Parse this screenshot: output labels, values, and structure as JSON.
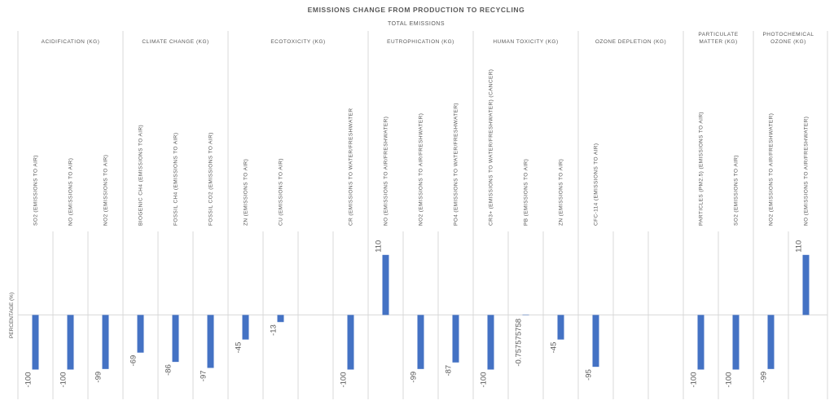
{
  "chart_data": {
    "type": "bar",
    "title": "EMISSIONS CHANGE FROM PRODUCTION TO RECYCLING",
    "subtitle": "TOTAL EMISSIONS",
    "ylabel": "PERCENTAGE (%)",
    "ylim": [
      -110,
      130
    ],
    "grid": false,
    "legend": "none",
    "bar_color": "#4472C4",
    "groups": [
      {
        "label": "ACIDIFICATION (KG)",
        "categories": [
          "SO2 (EMISSIONS TO AIR)",
          "NO (EMISSIONS TO AIR)",
          "NO2 (EMISSIONS TO AIR)"
        ],
        "values": [
          -100,
          -100,
          -99
        ],
        "value_labels": [
          "-100",
          "-100",
          "-99"
        ]
      },
      {
        "label": "CLIMATE CHANGE (KG)",
        "categories": [
          "BIOGENIC CH4 (EMISSIONS TO AIR)",
          "FOSSIL CH4 (EMISSIONS TO AIR)",
          "FOSSIL CO2 (EMISSIONS TO AIR)"
        ],
        "values": [
          -69,
          -86,
          -97
        ],
        "value_labels": [
          "-69",
          "-86",
          "-97"
        ]
      },
      {
        "label": "ECOTOXICITY (KG)",
        "categories": [
          "ZN (EMISSIONS TO AIR)",
          "CU (EMISSIONS TO AIR)",
          "",
          "CR (EMISSIONS TO WATER/FRESHWATER"
        ],
        "values": [
          -45,
          -13,
          null,
          -100
        ],
        "value_labels": [
          "-45",
          "-13",
          "",
          "-100"
        ]
      },
      {
        "label": "EUTROPHICATION (KG)",
        "categories": [
          "NO (EMISSIONS TO AIR/FRESHWATER)",
          "NO2 (EMISSIONS TO AIR/FRESHWATER)",
          "PO4 (EMISSIONS TO WATER/FRESHWATER)"
        ],
        "values": [
          110,
          -99,
          -87
        ],
        "value_labels": [
          "110",
          "-99",
          "-87"
        ]
      },
      {
        "label": "HUMAN TOXICITY (KG)",
        "categories": [
          "CR3+ (EMISSIONS TO WATER/FRESHWATER) (CANCER)",
          "PB (EMISSIONS TO AIR)",
          "ZN (EMISSIONS TO AIR)"
        ],
        "values": [
          -100,
          -0.757575758,
          -45
        ],
        "value_labels": [
          "-100",
          "-0.757575758",
          "-45"
        ]
      },
      {
        "label": "OZONE DEPLETION (KG)",
        "categories": [
          "CFC-114 (EMISSIONS TO AIR)",
          "",
          ""
        ],
        "values": [
          -95,
          null,
          null
        ],
        "value_labels": [
          "-95",
          "",
          ""
        ]
      },
      {
        "label": "PARTICULATE MATTER (KG)",
        "categories": [
          "PARTICLES (PM2.5) (EMISSIONS TO AIR)",
          "SO2 (EMISSIONS TO AIR)"
        ],
        "values": [
          -100,
          -100
        ],
        "value_labels": [
          "-100",
          "-100"
        ]
      },
      {
        "label": "PHOTOCHEMICAL OZONE (KG)",
        "categories": [
          "NO2 (EMISSIONS TO AIR/FRESHWATER)",
          "NO (EMISSIONS TO AIR/FRESHWATER)"
        ],
        "values": [
          -99,
          110
        ],
        "value_labels": [
          "-99",
          "110"
        ]
      }
    ]
  }
}
